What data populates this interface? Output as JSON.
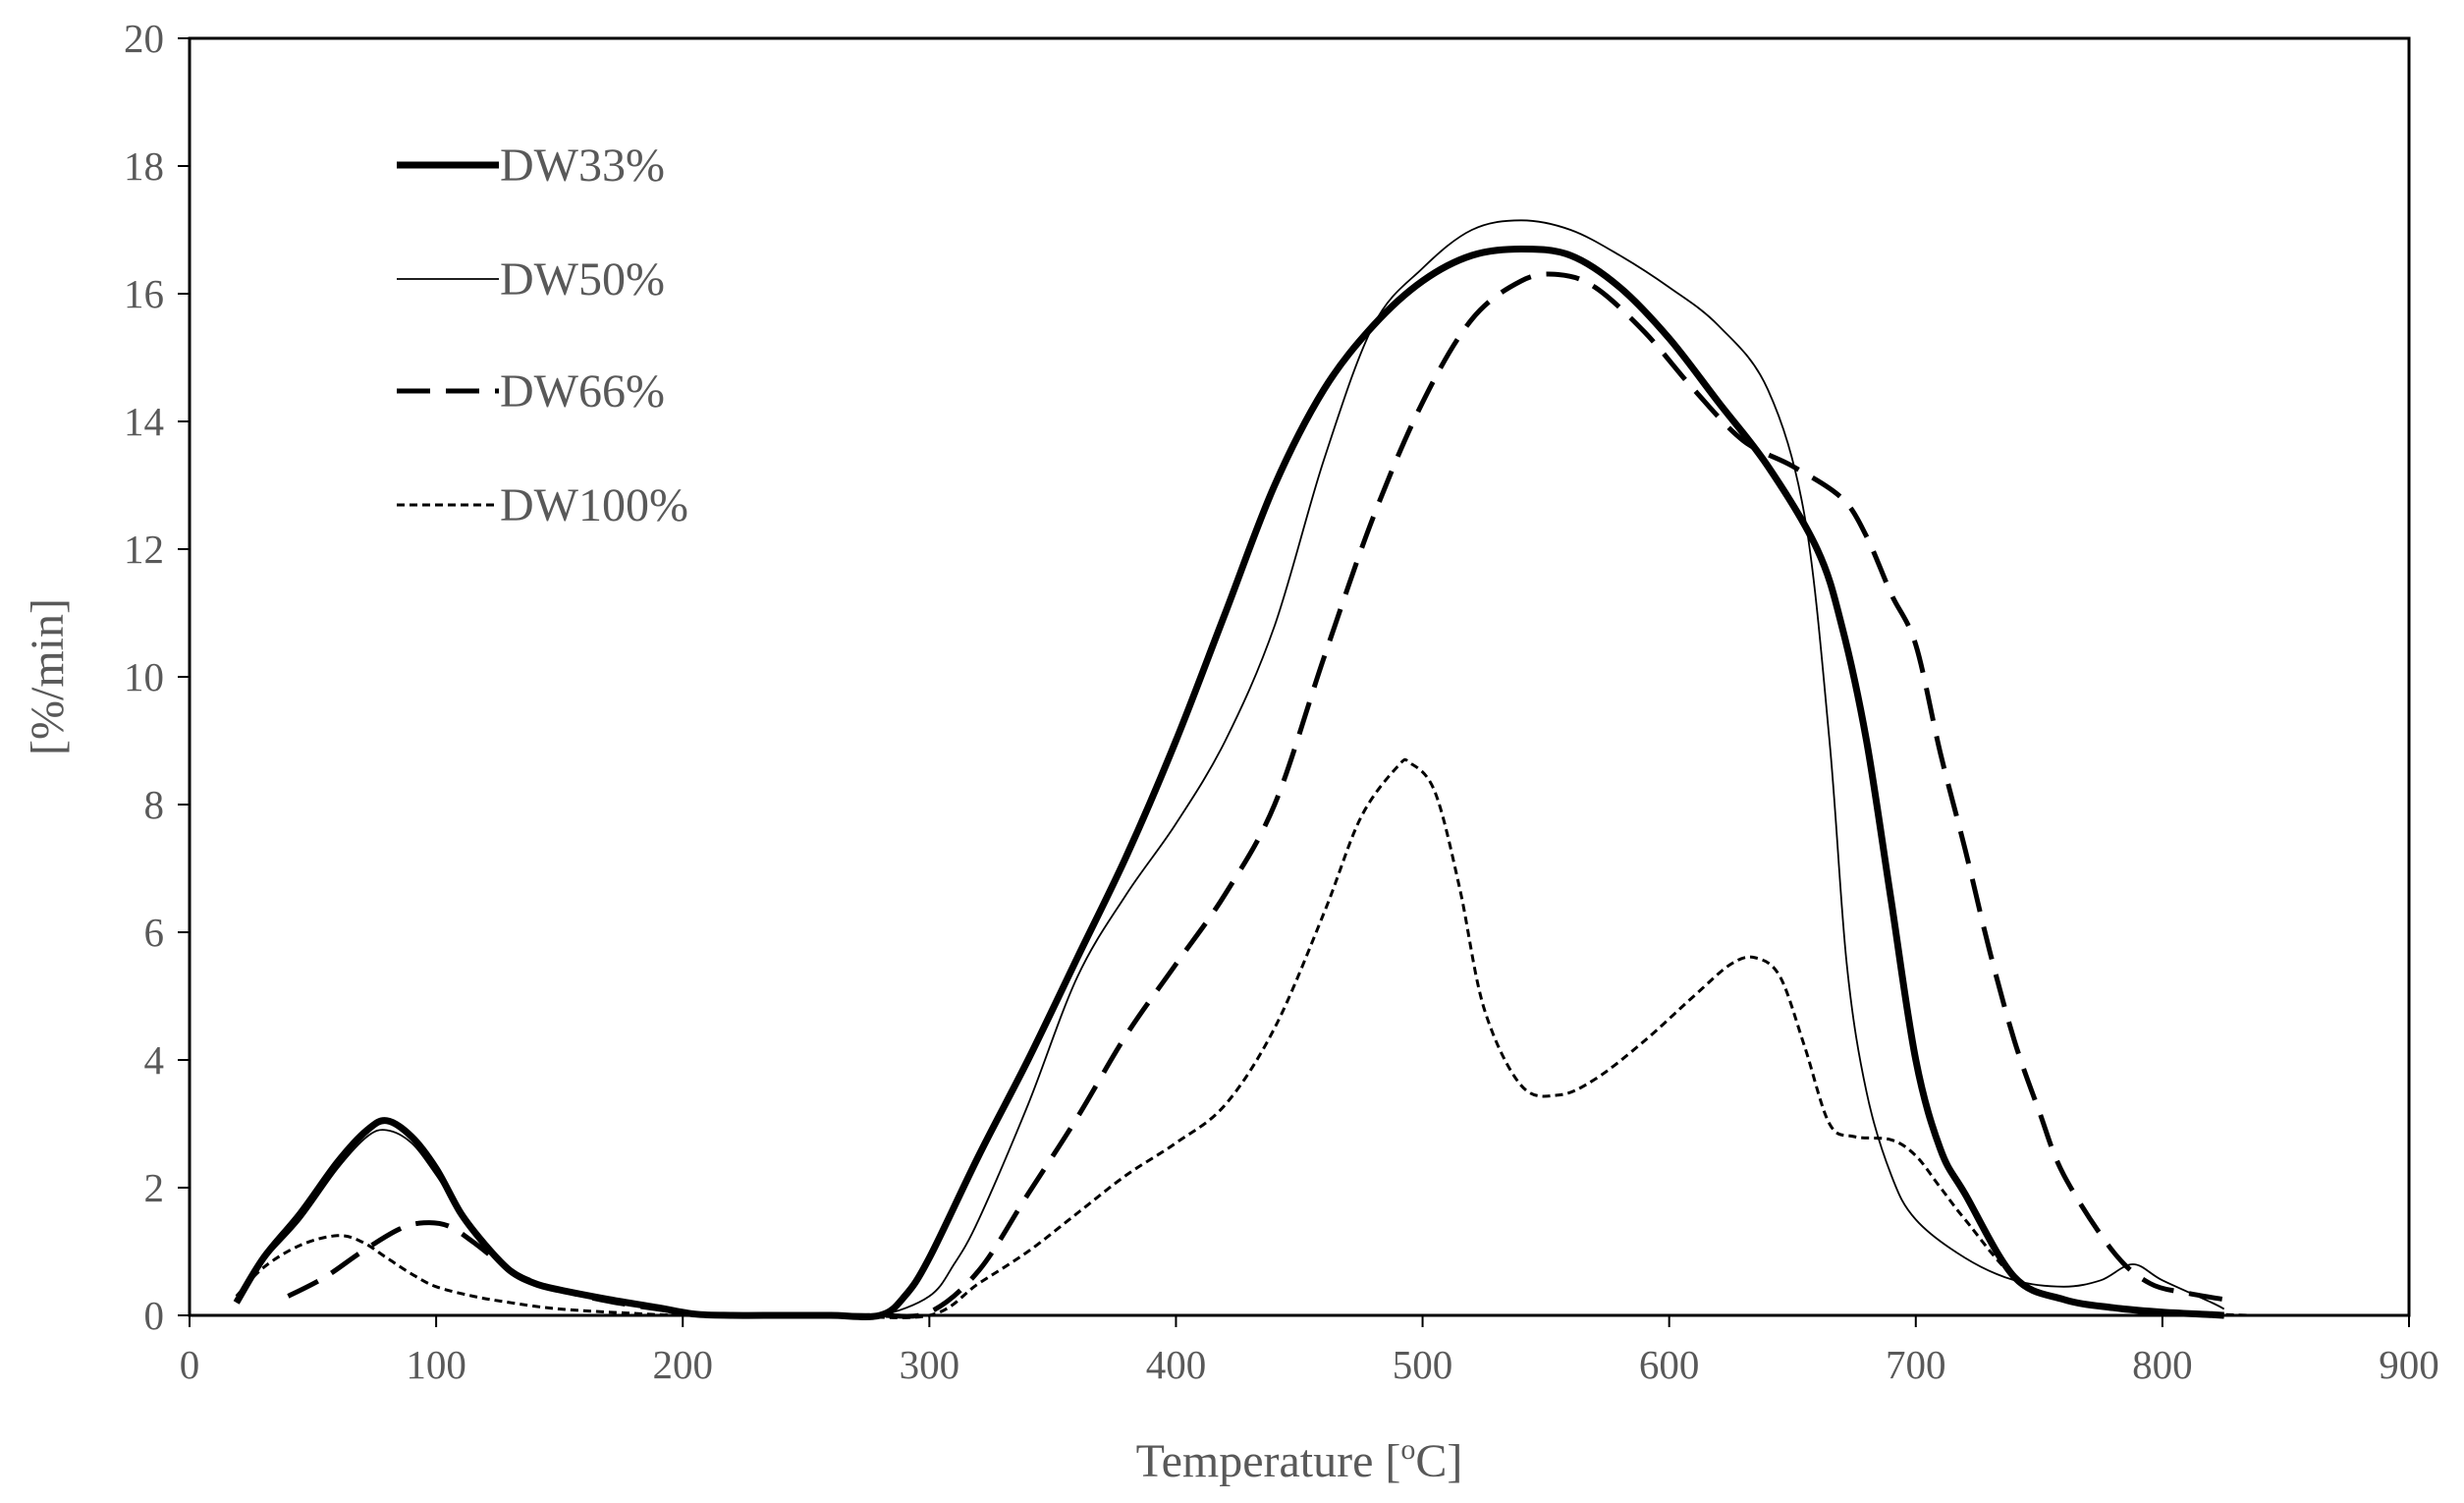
{
  "chart_data": {
    "type": "line",
    "title": "",
    "xlabel": "Temperature [°C]",
    "xlabel_parts": [
      "Temperature [",
      "o",
      "C]"
    ],
    "ylabel": "[%/min]",
    "xlim": [
      0,
      900
    ],
    "ylim": [
      0,
      20
    ],
    "xticks": [
      0,
      100,
      200,
      300,
      400,
      500,
      600,
      700,
      800,
      900
    ],
    "yticks": [
      0,
      2,
      4,
      6,
      8,
      10,
      12,
      14,
      16,
      18,
      20
    ],
    "grid": false,
    "legend_position": "top-left",
    "series": [
      {
        "name": "DW33%",
        "style": "solid-thick",
        "x": [
          19,
          30,
          45,
          60,
          72,
          80,
          90,
          100,
          110,
          120,
          130,
          140,
          150,
          170,
          190,
          205,
          220,
          240,
          260,
          280,
          290,
          300,
          320,
          340,
          360,
          380,
          400,
          420,
          440,
          460,
          480,
          500,
          520,
          540,
          560,
          580,
          600,
          620,
          640,
          660,
          670,
          680,
          690,
          700,
          710,
          720,
          740,
          760,
          780,
          800,
          820,
          825
        ],
        "y": [
          0.2,
          0.9,
          1.6,
          2.4,
          2.9,
          3.05,
          2.8,
          2.3,
          1.6,
          1.1,
          0.7,
          0.5,
          0.4,
          0.25,
          0.12,
          0.02,
          0.0,
          0.0,
          0.0,
          0.0,
          0.3,
          0.9,
          2.5,
          4.0,
          5.6,
          7.2,
          9.0,
          11.0,
          13.0,
          14.5,
          15.5,
          16.2,
          16.6,
          16.7,
          16.6,
          16.1,
          15.3,
          14.3,
          13.3,
          12.0,
          10.8,
          9.0,
          6.5,
          4.0,
          2.6,
          1.9,
          0.6,
          0.25,
          0.12,
          0.05,
          0.01,
          0.0
        ]
      },
      {
        "name": "DW50%",
        "style": "solid-thin",
        "x": [
          19,
          30,
          45,
          60,
          72,
          80,
          90,
          100,
          110,
          120,
          130,
          140,
          150,
          170,
          190,
          205,
          220,
          240,
          260,
          280,
          300,
          310,
          320,
          340,
          360,
          380,
          400,
          420,
          440,
          460,
          480,
          500,
          520,
          540,
          560,
          580,
          600,
          620,
          640,
          655,
          665,
          672,
          680,
          690,
          700,
          720,
          740,
          760,
          775,
          788,
          800,
          820,
          825
        ],
        "y": [
          0.2,
          0.85,
          1.5,
          2.3,
          2.8,
          2.9,
          2.7,
          2.2,
          1.6,
          1.1,
          0.7,
          0.5,
          0.38,
          0.22,
          0.1,
          0.02,
          0.0,
          0.0,
          0.0,
          0.0,
          0.3,
          0.8,
          1.5,
          3.3,
          5.3,
          6.6,
          7.7,
          9.0,
          10.8,
          13.4,
          15.5,
          16.4,
          17.0,
          17.15,
          17.0,
          16.6,
          16.1,
          15.5,
          14.5,
          12.5,
          9.0,
          5.5,
          3.5,
          2.2,
          1.5,
          0.9,
          0.55,
          0.45,
          0.55,
          0.8,
          0.55,
          0.2,
          0.1
        ]
      },
      {
        "name": "DW66%",
        "style": "long-dash",
        "x": [
          40,
          55,
          70,
          85,
          95,
          105,
          115,
          125,
          135,
          150,
          170,
          190,
          205,
          220,
          240,
          260,
          280,
          300,
          320,
          340,
          360,
          380,
          400,
          420,
          440,
          460,
          480,
          500,
          520,
          540,
          555,
          570,
          590,
          610,
          630,
          650,
          670,
          680,
          690,
          700,
          710,
          720,
          730,
          740,
          750,
          760,
          780,
          795,
          810,
          825
        ],
        "y": [
          0.3,
          0.6,
          1.0,
          1.35,
          1.45,
          1.4,
          1.15,
          0.85,
          0.6,
          0.4,
          0.22,
          0.1,
          0.02,
          0.0,
          0.0,
          0.0,
          0.0,
          0.05,
          0.7,
          1.9,
          3.1,
          4.4,
          5.5,
          6.6,
          8.0,
          10.3,
          12.5,
          14.3,
          15.6,
          16.2,
          16.3,
          16.1,
          15.4,
          14.5,
          13.7,
          13.3,
          12.8,
          12.2,
          11.3,
          10.5,
          8.8,
          7.3,
          5.7,
          4.3,
          3.2,
          2.2,
          1.0,
          0.5,
          0.35,
          0.25
        ]
      },
      {
        "name": "DW100%",
        "style": "short-dash",
        "x": [
          19,
          30,
          45,
          60,
          70,
          80,
          90,
          100,
          115,
          130,
          150,
          180,
          200,
          220,
          260,
          300,
          320,
          340,
          360,
          380,
          400,
          420,
          440,
          460,
          475,
          490,
          495,
          505,
          515,
          525,
          540,
          555,
          570,
          590,
          610,
          625,
          635,
          645,
          655,
          665,
          675,
          690,
          700,
          710,
          720,
          740,
          760,
          780,
          800,
          820,
          835
        ],
        "y": [
          0.3,
          0.75,
          1.1,
          1.25,
          1.15,
          0.9,
          0.65,
          0.45,
          0.3,
          0.2,
          0.1,
          0.03,
          0.0,
          0.0,
          0.0,
          0.0,
          0.5,
          1.0,
          1.6,
          2.2,
          2.7,
          3.3,
          4.5,
          6.3,
          7.8,
          8.6,
          8.65,
          8.2,
          6.7,
          4.8,
          3.6,
          3.45,
          3.7,
          4.3,
          5.0,
          5.5,
          5.6,
          5.3,
          4.2,
          3.0,
          2.8,
          2.75,
          2.5,
          2.0,
          1.5,
          0.6,
          0.25,
          0.1,
          0.05,
          0.02,
          0.0
        ]
      }
    ]
  }
}
